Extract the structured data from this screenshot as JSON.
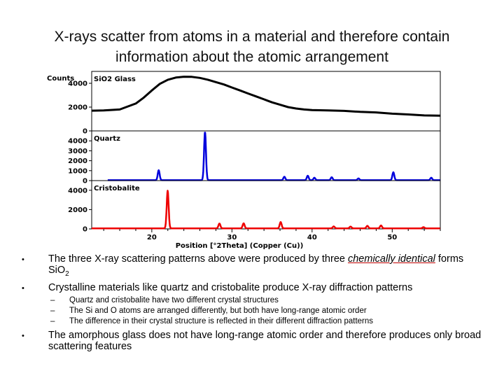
{
  "slide": {
    "title_line1": "X-rays scatter from atoms in a material and therefore contain",
    "title_line2": "information about the atomic arrangement"
  },
  "chart_data": {
    "type": "line",
    "ylabel": "Counts",
    "xlabel": "Position [°2Theta] (Copper (Cu))",
    "xlim": [
      12.5,
      56
    ],
    "xticks": [
      20,
      30,
      40,
      50
    ],
    "panels": [
      {
        "name": "SiO2 Glass",
        "color": "#000000",
        "ylim": [
          0,
          5000
        ],
        "yticks": [
          0,
          2000,
          4000
        ],
        "points": [
          [
            12.5,
            1700
          ],
          [
            14,
            1720
          ],
          [
            16,
            1800
          ],
          [
            18,
            2300
          ],
          [
            19,
            2800
          ],
          [
            20,
            3400
          ],
          [
            21,
            3950
          ],
          [
            22,
            4300
          ],
          [
            23,
            4480
          ],
          [
            24,
            4550
          ],
          [
            25,
            4540
          ],
          [
            26,
            4450
          ],
          [
            27,
            4300
          ],
          [
            28,
            4100
          ],
          [
            29,
            3900
          ],
          [
            30,
            3650
          ],
          [
            31,
            3400
          ],
          [
            32,
            3150
          ],
          [
            33,
            2900
          ],
          [
            34,
            2650
          ],
          [
            35,
            2400
          ],
          [
            36,
            2200
          ],
          [
            37,
            2000
          ],
          [
            38,
            1880
          ],
          [
            39,
            1800
          ],
          [
            40,
            1750
          ],
          [
            42,
            1720
          ],
          [
            44,
            1680
          ],
          [
            46,
            1600
          ],
          [
            48,
            1550
          ],
          [
            50,
            1450
          ],
          [
            52,
            1380
          ],
          [
            54,
            1300
          ],
          [
            56,
            1280
          ]
        ]
      },
      {
        "name": "Quartz",
        "color": "#0000dd",
        "ylim": [
          0,
          5000
        ],
        "yticks": [
          0,
          1000,
          2000,
          3000,
          4000
        ],
        "baseline": 40,
        "peaks": [
          [
            20.86,
            1000
          ],
          [
            26.64,
            4850
          ],
          [
            36.54,
            350
          ],
          [
            39.46,
            450
          ],
          [
            40.29,
            250
          ],
          [
            42.45,
            300
          ],
          [
            45.79,
            180
          ],
          [
            50.14,
            800
          ],
          [
            54.87,
            250
          ]
        ]
      },
      {
        "name": "Cristobalite",
        "color": "#ee0000",
        "ylim": [
          0,
          5000
        ],
        "yticks": [
          0,
          2000,
          4000
        ],
        "baseline": 60,
        "peaks": [
          [
            21.98,
            3900
          ],
          [
            28.44,
            500
          ],
          [
            31.46,
            520
          ],
          [
            36.08,
            650
          ],
          [
            42.7,
            200
          ],
          [
            44.8,
            180
          ],
          [
            46.9,
            260
          ],
          [
            48.6,
            300
          ],
          [
            53.9,
            120
          ]
        ]
      }
    ]
  },
  "bullets": [
    {
      "pre": "The three X-ray scattering patterns above were produced by three ",
      "highlight": "chemically identical",
      "post": " forms SiO",
      "sub": "2"
    },
    {
      "text": "Crystalline materials like quartz and cristobalite produce X-ray diffraction patterns"
    },
    {
      "sub_items": [
        "Quartz and cristobalite have two different crystal structures",
        "The Si and O atoms are arranged differently, but both have long-range atomic order",
        "The difference in their crystal structure is reflected in their different diffraction patterns"
      ]
    },
    {
      "text": "The amorphous glass does not have long-range atomic order and therefore produces only broad scattering features"
    }
  ]
}
